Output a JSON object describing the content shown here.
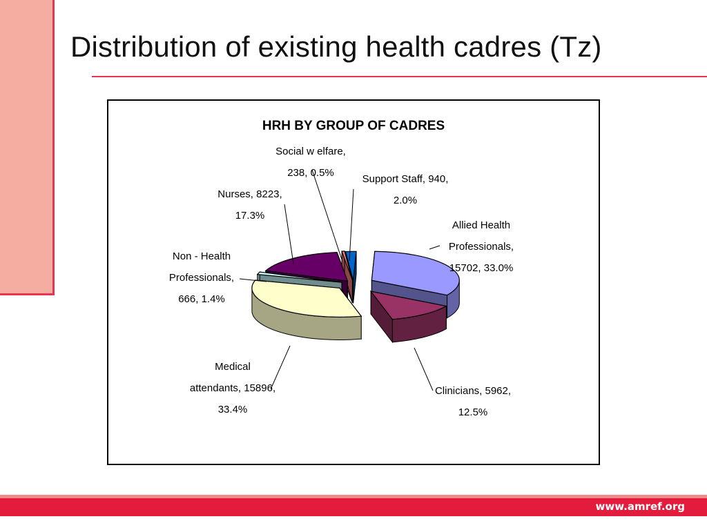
{
  "slide": {
    "title": "Distribution of existing health cadres (Tz)",
    "url": "www.amref.org",
    "accent_color": "#e8354f",
    "side_color": "#f4ada0",
    "footer_color": "#e31c3d"
  },
  "chart_data": {
    "type": "pie",
    "title": "HRH BY GROUP OF CADRES",
    "exploded": true,
    "three_d": true,
    "slices": [
      {
        "label": "Allied Health Professionals",
        "value": 15702,
        "percent": "33.0%",
        "color": "#9999ff",
        "text_lines": [
          "Allied Health",
          "Professionals,",
          "15702, 33.0%"
        ]
      },
      {
        "label": "Clinicians",
        "value": 5962,
        "percent": "12.5%",
        "color": "#993366",
        "text_lines": [
          "Clinicians, 5962,",
          "12.5%"
        ]
      },
      {
        "label": "Medical attendants",
        "value": 15896,
        "percent": "33.4%",
        "color": "#ffffcc",
        "text_lines": [
          "Medical",
          "attendants, 15896,",
          "33.4%"
        ]
      },
      {
        "label": "Non - Health Professionals",
        "value": 666,
        "percent": "1.4%",
        "color": "#ccffff",
        "text_lines": [
          "Non - Health",
          "Professionals,",
          "666, 1.4%"
        ]
      },
      {
        "label": "Nurses",
        "value": 8223,
        "percent": "17.3%",
        "color": "#660066",
        "text_lines": [
          "Nurses, 8223,",
          "17.3%"
        ]
      },
      {
        "label": "Social welfare",
        "value": 238,
        "percent": "0.5%",
        "color": "#ff8080",
        "text_lines": [
          "Social w elfare,",
          "238, 0.5%"
        ]
      },
      {
        "label": "Support Staff",
        "value": 940,
        "percent": "2.0%",
        "color": "#0066cc",
        "text_lines": [
          "Support Staff, 940,",
          "2.0%"
        ]
      }
    ]
  }
}
